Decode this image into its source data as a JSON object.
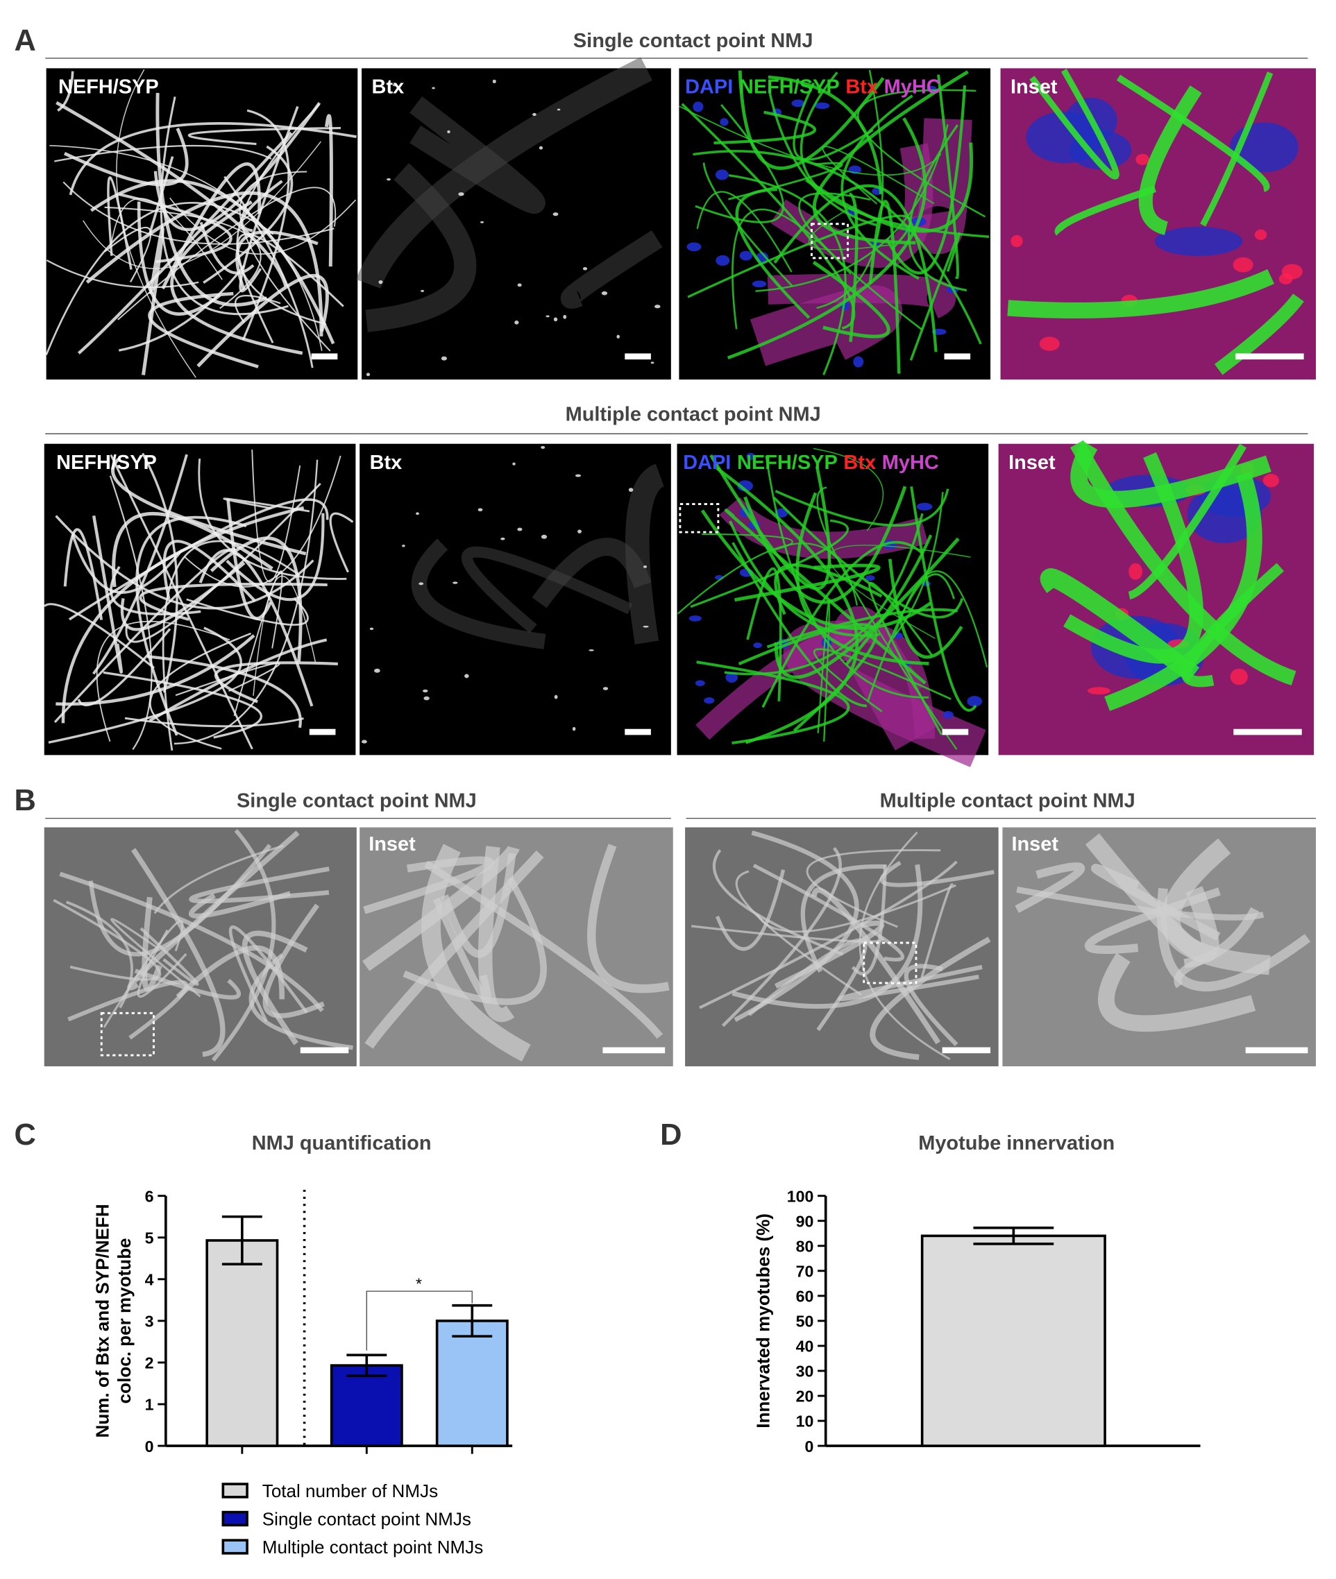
{
  "panel_labels": [
    "A",
    "B",
    "C",
    "D"
  ],
  "panel_a": {
    "rows": [
      {
        "title": "Single contact point NMJ",
        "labels": [
          "NEFH/SYP",
          "Btx",
          [
            "DAPI",
            "NEFH/SYP",
            "Btx",
            "MyHC"
          ],
          "Inset"
        ]
      },
      {
        "title": "Multiple contact point NMJ",
        "labels": [
          "NEFH/SYP",
          "Btx",
          [
            "DAPI",
            "NEFH/SYP",
            "Btx",
            "MyHC"
          ],
          "Inset"
        ]
      }
    ]
  },
  "panel_b": {
    "groups": [
      {
        "title": "Single contact point NMJ",
        "inset_label": "Inset"
      },
      {
        "title": "Multiple contact point NMJ",
        "inset_label": "Inset"
      }
    ]
  },
  "chart_data": [
    {
      "type": "bar",
      "title": "NMJ quantification",
      "ylabel": [
        "Num. of Btx and SYP/NEFH",
        "coloc. per myotube"
      ],
      "ylim": [
        0,
        6
      ],
      "yticks": [
        0,
        1,
        2,
        3,
        4,
        5,
        6
      ],
      "series": [
        {
          "name": "Total number of NMJs",
          "color": "#d9d9d9",
          "values": [
            4.93
          ],
          "errors": [
            0.57
          ]
        },
        {
          "name": "Single contact point NMJs",
          "color": "#0a10b0",
          "values": [
            1.93
          ],
          "errors": [
            0.25
          ]
        },
        {
          "name": "Multiple contact point NMJs",
          "color": "#99c4f5",
          "values": [
            3.0
          ],
          "errors": [
            0.37
          ]
        }
      ],
      "annotation": "*"
    },
    {
      "type": "bar",
      "title": "Myotube innervation",
      "ylabel": "Innervated myotubes (%)",
      "ylim": [
        0,
        100
      ],
      "yticks": [
        0,
        10,
        20,
        30,
        40,
        50,
        60,
        70,
        80,
        90,
        100
      ],
      "series": [
        {
          "color": "#dcdcdc",
          "values": [
            84
          ],
          "errors": [
            3.2
          ]
        }
      ]
    }
  ]
}
